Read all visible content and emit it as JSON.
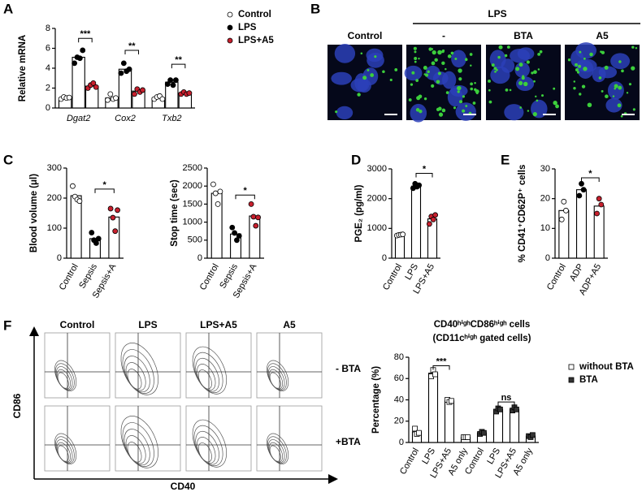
{
  "panel_labels": [
    "A",
    "B",
    "C",
    "D",
    "E",
    "F"
  ],
  "microscopy": {
    "group_label": "LPS",
    "columns": [
      "Control",
      "-",
      "BTA",
      "A5"
    ]
  },
  "flow": {
    "columns": [
      "Control",
      "LPS",
      "LPS+A5",
      "A5"
    ],
    "rows": [
      "- BTA",
      "+BTA"
    ],
    "x_label": "CD40",
    "y_label": "CD86"
  },
  "chart_data": [
    {
      "type": "bar",
      "y_label": "Relative mRNA",
      "categories": [
        "Dgat2",
        "Cox2",
        "Txb2"
      ],
      "bar_color": "#ffffff",
      "series": [
        {
          "name": "Control",
          "color": "#ffffff",
          "marker": "circle",
          "values": [
            1,
            1,
            1
          ],
          "points": [
            [
              0.9,
              1.1,
              1.0,
              1.05
            ],
            [
              0.8,
              1.4,
              0.9,
              1.0
            ],
            [
              0.9,
              1.1,
              1.2,
              0.9
            ]
          ]
        },
        {
          "name": "LPS",
          "color": "#000000",
          "marker": "circle",
          "values": [
            5.1,
            3.9,
            2.6
          ],
          "points": [
            [
              4.5,
              5.1,
              5.0,
              5.8
            ],
            [
              3.5,
              4.5,
              3.7,
              3.9
            ],
            [
              2.4,
              2.8,
              2.3,
              2.8
            ]
          ]
        },
        {
          "name": "LPS+A5",
          "color": "#c8202e",
          "marker": "circle",
          "values": [
            2.2,
            1.7,
            1.5
          ],
          "points": [
            [
              2.0,
              2.3,
              2.5,
              2.1
            ],
            [
              1.4,
              1.9,
              1.6,
              1.8
            ],
            [
              1.4,
              1.6,
              1.4,
              1.5
            ]
          ]
        }
      ],
      "ylim": [
        0,
        8
      ],
      "yticks": [
        0,
        2,
        4,
        6,
        8
      ],
      "annotations": [
        {
          "text": "***",
          "category": 0,
          "from": 1,
          "to": 2,
          "y": 7.0
        },
        {
          "text": "**",
          "category": 1,
          "from": 1,
          "to": 2,
          "y": 5.8
        },
        {
          "text": "**",
          "category": 2,
          "from": 1,
          "to": 2,
          "y": 4.4
        }
      ]
    },
    {
      "type": "bar",
      "y_label": "Blood volume (μl)",
      "categories": [
        "Control",
        "Sepsis",
        "Sepsis+A"
      ],
      "bar_color": "#ffffff",
      "values": [
        208,
        65,
        137
      ],
      "colors": [
        "#ffffff",
        "#000000",
        "#c8202e"
      ],
      "points": [
        [
          240,
          205,
          195,
          190
        ],
        [
          85,
          60,
          50,
          65
        ],
        [
          165,
          135,
          90,
          160
        ]
      ],
      "ylim": [
        0,
        300
      ],
      "yticks": [
        0,
        100,
        200,
        300
      ],
      "annotations": [
        {
          "text": "*",
          "from": 1,
          "to": 2,
          "y": 230
        }
      ]
    },
    {
      "type": "bar",
      "y_label": "Stop time (sec)",
      "categories": [
        "Control",
        "Sepsis",
        "Sepsis+A"
      ],
      "bar_color": "#ffffff",
      "values": [
        1800,
        670,
        1170
      ],
      "colors": [
        "#ffffff",
        "#000000",
        "#c8202e"
      ],
      "points": [
        [
          2050,
          1800,
          1500,
          1850
        ],
        [
          850,
          700,
          500,
          620
        ],
        [
          1500,
          1150,
          900,
          1130
        ]
      ],
      "ylim": [
        0,
        2500
      ],
      "yticks": [
        0,
        500,
        1000,
        1500,
        2000,
        2500
      ],
      "annotations": [
        {
          "text": "*",
          "from": 1,
          "to": 2,
          "y": 1750
        }
      ]
    },
    {
      "type": "bar",
      "y_label": "PGE₂ (pg/ml)",
      "categories": [
        "Control",
        "LPS",
        "LPS+A5"
      ],
      "bar_color": "#ffffff",
      "values": [
        770,
        2420,
        1320
      ],
      "colors": [
        "#ffffff",
        "#000000",
        "#c8202e"
      ],
      "points": [
        [
          760,
          780,
          790,
          800
        ],
        [
          2350,
          2500,
          2400,
          2450
        ],
        [
          1150,
          1400,
          1300,
          1450
        ]
      ],
      "ylim": [
        0,
        3000
      ],
      "yticks": [
        0,
        1000,
        2000,
        3000
      ],
      "annotations": [
        {
          "text": "*",
          "from": 1,
          "to": 2,
          "y": 2850
        }
      ]
    },
    {
      "type": "bar",
      "y_label": "% CD41⁺CD62P⁺ cells",
      "categories": [
        "Control",
        "ADP",
        "ADP+A5"
      ],
      "bar_color": "#ffffff",
      "values": [
        16,
        23,
        17.5
      ],
      "colors": [
        "#ffffff",
        "#000000",
        "#c8202e"
      ],
      "points": [
        [
          13,
          19,
          16
        ],
        [
          21,
          25,
          23
        ],
        [
          15,
          20,
          18
        ]
      ],
      "ylim": [
        0,
        30
      ],
      "yticks": [
        0,
        10,
        20,
        30
      ],
      "annotations": [
        {
          "text": "*",
          "from": 1,
          "to": 2,
          "y": 27
        }
      ]
    },
    {
      "type": "bar",
      "title": "CD40ʰⁱᵍʰCD86ʰⁱᵍʰ cells",
      "subtitle": "(CD11cʰⁱᵍʰ gated cells)",
      "y_label": "Percentage (%)",
      "categories": [
        "Control",
        "LPS",
        "LPS+A5",
        "A5 only",
        "Control",
        "LPS",
        "LPS+A5",
        "A5 only"
      ],
      "bar_color": "#ffffff",
      "series": [
        {
          "name": "without BTA",
          "color": "#ffffff",
          "marker": "square",
          "values": [
            10,
            65,
            39,
            5,
            null,
            null,
            null,
            null
          ],
          "points": [
            [
              13,
              8,
              9
            ],
            [
              62,
              68,
              64
            ],
            [
              40,
              38,
              39
            ],
            [
              5,
              5,
              5
            ],
            null,
            null,
            null,
            null
          ]
        },
        {
          "name": "BTA",
          "color": "#333333",
          "marker": "square",
          "values": [
            null,
            null,
            null,
            null,
            9,
            31,
            31,
            6
          ],
          "points": [
            null,
            null,
            null,
            null,
            [
              8,
              10,
              9
            ],
            [
              29,
              32,
              31
            ],
            [
              30,
              33,
              31
            ],
            [
              6,
              5,
              7
            ]
          ]
        }
      ],
      "ylim": [
        0,
        80
      ],
      "yticks": [
        0,
        20,
        40,
        60,
        80
      ],
      "annotations": [
        {
          "text": "***",
          "from": 1,
          "to": 2,
          "y": 72
        },
        {
          "text": "ns",
          "from": 5,
          "to": 6,
          "y": 38
        }
      ]
    }
  ]
}
